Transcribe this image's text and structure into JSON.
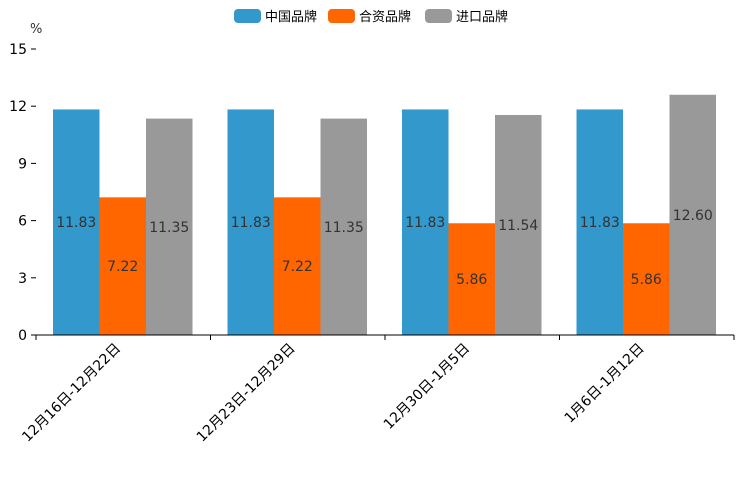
{
  "chart_data": {
    "type": "bar",
    "title": "",
    "xlabel": "",
    "ylabel": "%",
    "ylim": [
      0,
      15
    ],
    "yticks": [
      0,
      3,
      6,
      9,
      12,
      15
    ],
    "grid": false,
    "legend_position": "top-center",
    "categories": [
      "12月16日-12月22日",
      "12月23日-12月29日",
      "12月30日-1月5日",
      "1月6日-1月12日"
    ],
    "series": [
      {
        "name": "中国品牌",
        "color": "#3399CC",
        "values": [
          11.83,
          11.83,
          11.83,
          11.83
        ],
        "labels": [
          "11.83",
          "11.83",
          "11.83",
          "11.83"
        ]
      },
      {
        "name": "合资品牌",
        "color": "#FF6600",
        "values": [
          7.22,
          7.22,
          5.86,
          5.86
        ],
        "labels": [
          "7.22",
          "7.22",
          "5.86",
          "5.86"
        ]
      },
      {
        "name": "进口品牌",
        "color": "#999999",
        "values": [
          11.35,
          11.35,
          11.54,
          12.6
        ],
        "labels": [
          "11.35",
          "11.35",
          "11.54",
          "12.60"
        ]
      }
    ]
  }
}
